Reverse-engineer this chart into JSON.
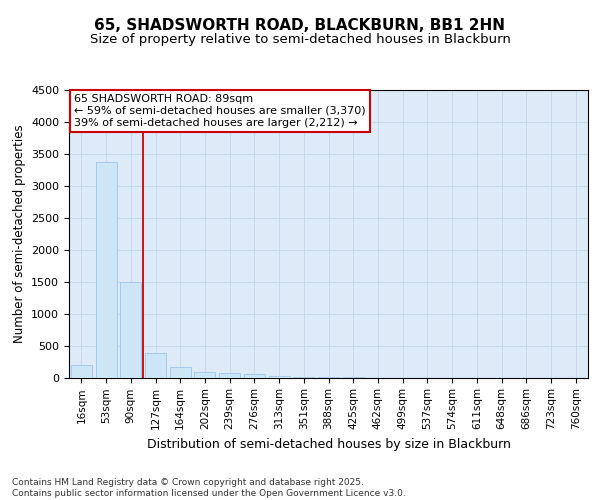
{
  "title1": "65, SHADSWORTH ROAD, BLACKBURN, BB1 2HN",
  "title2": "Size of property relative to semi-detached houses in Blackburn",
  "xlabel": "Distribution of semi-detached houses by size in Blackburn",
  "ylabel": "Number of semi-detached properties",
  "bar_labels": [
    "16sqm",
    "53sqm",
    "90sqm",
    "127sqm",
    "164sqm",
    "202sqm",
    "239sqm",
    "276sqm",
    "313sqm",
    "351sqm",
    "388sqm",
    "425sqm",
    "462sqm",
    "499sqm",
    "537sqm",
    "574sqm",
    "611sqm",
    "648sqm",
    "686sqm",
    "723sqm",
    "760sqm"
  ],
  "bar_values": [
    200,
    3370,
    1500,
    390,
    160,
    90,
    65,
    50,
    30,
    10,
    5,
    5,
    0,
    0,
    0,
    0,
    0,
    0,
    0,
    0,
    0
  ],
  "bar_color": "#cce5f7",
  "bar_edge_color": "#a0c4e8",
  "grid_color": "#c8d8ec",
  "background_color": "#ddeaf8",
  "vline_color": "#cc0000",
  "annotation_line1": "65 SHADSWORTH ROAD: 89sqm",
  "annotation_line2": "← 59% of semi-detached houses are smaller (3,370)",
  "annotation_line3": "39% of semi-detached houses are larger (2,212) →",
  "annotation_box_color": "white",
  "annotation_box_edge": "#cc0000",
  "footer_text": "Contains HM Land Registry data © Crown copyright and database right 2025.\nContains public sector information licensed under the Open Government Licence v3.0.",
  "ylim": [
    0,
    4500
  ],
  "yticks": [
    0,
    500,
    1000,
    1500,
    2000,
    2500,
    3000,
    3500,
    4000,
    4500
  ]
}
